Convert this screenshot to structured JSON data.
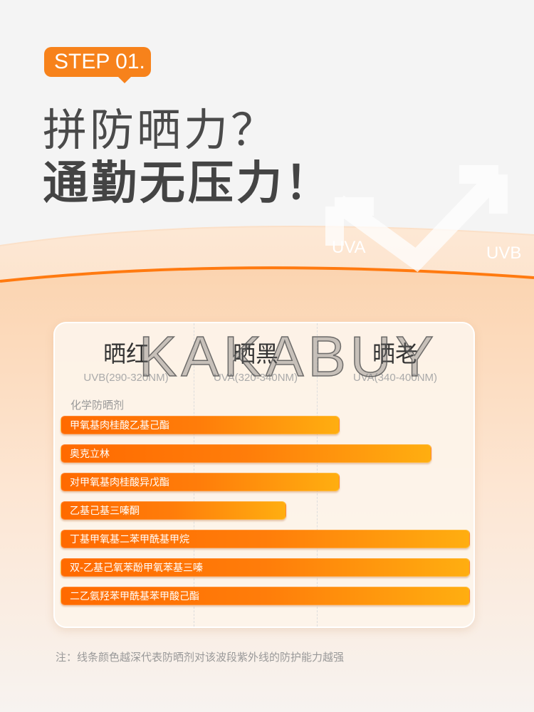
{
  "header": {
    "step": "STEP 01.",
    "title_line1": "拼防晒力？",
    "title_line2": "通勤无压力！"
  },
  "decor": {
    "uva_label": "UVA",
    "uvb_label": "UVB"
  },
  "watermark": "KAKABUY",
  "colors": {
    "accent": "#f7821b",
    "bar_start": "#ff6a00",
    "bar_end": "#ffae10"
  },
  "chart_data": {
    "type": "bar",
    "orientation": "horizontal",
    "category_group": "化学防晒剂",
    "bands": [
      {
        "title": "晒红",
        "range": "UVB(290-320NM)",
        "from": 290,
        "to": 320
      },
      {
        "title": "晒黑",
        "range": "UVA(320-340NM)",
        "from": 320,
        "to": 340
      },
      {
        "title": "晒老",
        "range": "UVA(340-400NM)",
        "from": 340,
        "to": 400
      }
    ],
    "xlim": [
      290,
      400
    ],
    "unit": "nm",
    "categories": [
      "甲氧基肉桂酸乙基己酯",
      "奥克立林",
      "对甲氧基肉桂酸异戊酯",
      "乙基己基三嗪酮",
      "丁基甲氧基二苯甲酰基甲烷",
      "双-乙基己氧苯酚甲氧苯基三嗪",
      "二乙氨羟苯甲酰基苯甲酸己酯"
    ],
    "values": [
      349,
      385,
      349,
      335,
      400,
      400,
      400
    ]
  },
  "note": "注：线条颜色越深代表防晒剂对该波段紫外线的防护能力越强"
}
